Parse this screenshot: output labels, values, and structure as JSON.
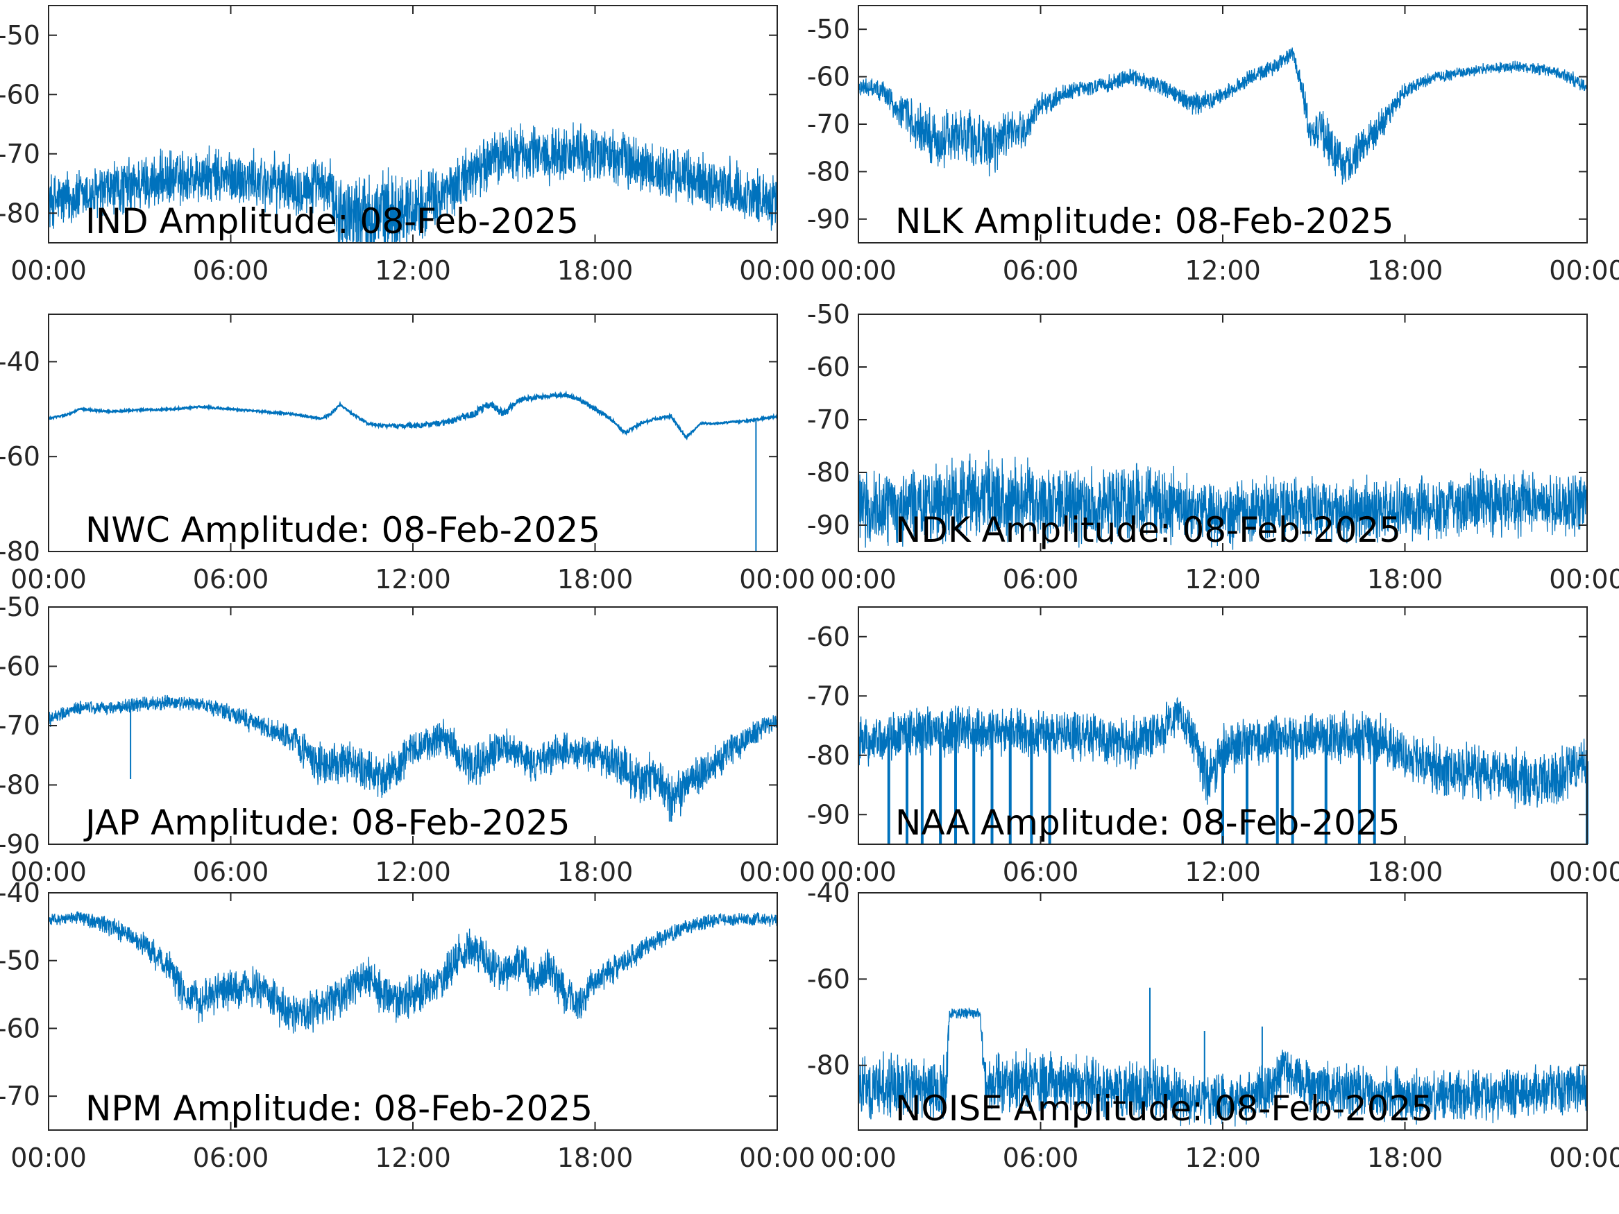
{
  "colors": {
    "series": "#0072BD",
    "axes": "#262626",
    "text": "#000000"
  },
  "x_tick_labels": [
    "00:00",
    "06:00",
    "12:00",
    "18:00",
    "00:00"
  ],
  "chart_data": [
    {
      "type": "line",
      "title": "IND Amplitude: 08-Feb-2025",
      "xlim": [
        0,
        24
      ],
      "ylim": [
        -85,
        -45
      ],
      "yticks": [
        -80,
        -70,
        -60,
        -50
      ],
      "ytick_labels": [
        "-80",
        "-70",
        "-60",
        "-50"
      ],
      "style": "noisy",
      "series": [
        {
          "x": [
            0,
            1.5,
            3,
            4.5,
            6,
            7.5,
            9.3,
            9.6,
            11,
            12,
            13,
            14,
            15,
            16,
            17,
            18,
            19,
            20,
            21,
            22,
            23,
            24
          ],
          "y": [
            -78,
            -77,
            -75,
            -74,
            -74,
            -75,
            -76,
            -80,
            -80,
            -79,
            -77,
            -73,
            -70,
            -70,
            -70,
            -70,
            -71,
            -73,
            -74,
            -75,
            -77,
            -78
          ],
          "band": [
            4,
            4,
            4,
            4,
            4,
            4,
            4,
            6,
            6,
            5,
            4,
            4,
            4,
            4,
            4,
            4,
            4,
            4,
            4,
            4,
            4,
            4
          ]
        }
      ]
    },
    {
      "type": "line",
      "title": "NLK Amplitude: 08-Feb-2025",
      "xlim": [
        0,
        24
      ],
      "ylim": [
        -95,
        -45
      ],
      "yticks": [
        -90,
        -80,
        -70,
        -60,
        -50
      ],
      "ytick_labels": [
        "-90",
        "-80",
        "-70",
        "-60",
        "-50"
      ],
      "style": "noisy",
      "series": [
        {
          "x": [
            0,
            0.8,
            1.5,
            2.5,
            3.5,
            4.5,
            5,
            5.5,
            6,
            7,
            8,
            9,
            10,
            10.5,
            11,
            12,
            13,
            14,
            14.3,
            14.6,
            14.9,
            15.2,
            16,
            17,
            18,
            19,
            20,
            21,
            22,
            23,
            24
          ],
          "y": [
            -62,
            -63,
            -68,
            -74,
            -72,
            -75,
            -72,
            -71,
            -66,
            -63,
            -62,
            -60,
            -62,
            -64,
            -66,
            -64,
            -60,
            -57,
            -55,
            -62,
            -72,
            -71,
            -79,
            -72,
            -63,
            -60,
            -59,
            -58,
            -58,
            -59,
            -62
          ],
          "band": [
            1.5,
            2,
            4,
            5,
            5,
            5,
            4,
            3,
            2,
            1.5,
            1.5,
            1.5,
            1.5,
            2,
            2,
            1.5,
            1.5,
            1.5,
            1.5,
            2,
            3,
            4,
            4,
            3,
            1.5,
            1,
            1,
            1,
            1,
            1,
            1.5
          ]
        }
      ]
    },
    {
      "type": "line",
      "title": "NWC Amplitude: 08-Feb-2025",
      "xlim": [
        0,
        24
      ],
      "ylim": [
        -80,
        -30
      ],
      "yticks": [
        -80,
        -60,
        -40
      ],
      "ytick_labels": [
        "-80",
        "-60",
        "-40"
      ],
      "style": "smooth",
      "series": [
        {
          "x": [
            0,
            0.7,
            1,
            2,
            3,
            4,
            5,
            6,
            7,
            8,
            9,
            9.3,
            9.6,
            10,
            10.5,
            11,
            12,
            13,
            14,
            14.5,
            15,
            15.5,
            16,
            17,
            17.5,
            18,
            18.5,
            19,
            19.5,
            20,
            20.5,
            21,
            21.5,
            22,
            23,
            24
          ],
          "y": [
            -52,
            -51,
            -50,
            -50.5,
            -50.2,
            -50,
            -49.5,
            -50,
            -50.5,
            -51,
            -52,
            -51,
            -49,
            -51,
            -53,
            -53.5,
            -53.5,
            -53,
            -51,
            -49,
            -51,
            -48,
            -47.5,
            -47,
            -48,
            -50,
            -52,
            -55,
            -53,
            -52,
            -51.5,
            -56,
            -53,
            -53,
            -52.5,
            -51.5
          ],
          "band": [
            0.4,
            0.4,
            0.4,
            0.4,
            0.4,
            0.4,
            0.4,
            0.4,
            0.4,
            0.4,
            0.4,
            0.4,
            0.4,
            0.5,
            0.6,
            0.6,
            1,
            1.2,
            1.5,
            1.5,
            1.5,
            1.2,
            1,
            0.8,
            0.8,
            0.8,
            0.8,
            0.8,
            0.6,
            0.5,
            0.5,
            0.5,
            0.4,
            0.4,
            0.4,
            0.4
          ],
          "spikes": [
            {
              "x": 23.3,
              "y": -80
            }
          ]
        }
      ]
    },
    {
      "type": "line",
      "title": "NDK Amplitude: 08-Feb-2025",
      "xlim": [
        0,
        24
      ],
      "ylim": [
        -95,
        -50
      ],
      "yticks": [
        -90,
        -80,
        -70,
        -60,
        -50
      ],
      "ytick_labels": [
        "-90",
        "-80",
        "-70",
        "-60",
        "-50"
      ],
      "style": "noisy",
      "series": [
        {
          "x": [
            0,
            2,
            4,
            6,
            8,
            10,
            11,
            12,
            14,
            16,
            18,
            20,
            22,
            24
          ],
          "y": [
            -87,
            -86,
            -85,
            -86,
            -86,
            -86,
            -87,
            -88,
            -87,
            -87,
            -87,
            -86,
            -86,
            -86
          ],
          "band": [
            6,
            6,
            7,
            6,
            6,
            6,
            5,
            5,
            5,
            5,
            5,
            5,
            5,
            5
          ]
        }
      ]
    },
    {
      "type": "line",
      "title": "JAP Amplitude: 08-Feb-2025",
      "xlim": [
        0,
        24
      ],
      "ylim": [
        -90,
        -50
      ],
      "yticks": [
        -90,
        -80,
        -70,
        -60,
        -50
      ],
      "ytick_labels": [
        "-90",
        "-80",
        "-70",
        "-60",
        "-50"
      ],
      "style": "noisy",
      "series": [
        {
          "x": [
            0,
            1,
            2,
            3,
            4,
            5,
            6,
            7,
            8,
            9,
            10,
            10.5,
            11,
            11.5,
            12,
            13,
            13,
            14,
            15,
            16,
            17,
            18,
            19,
            19.5,
            20,
            20.5,
            21,
            22,
            23,
            24
          ],
          "y": [
            -69,
            -67,
            -67,
            -66.5,
            -66,
            -66.5,
            -68,
            -70,
            -72,
            -77,
            -76,
            -78,
            -79,
            -77,
            -74,
            -72,
            -72,
            -77,
            -73,
            -77,
            -74,
            -75,
            -77,
            -80,
            -78,
            -83,
            -80,
            -76,
            -72,
            -69
          ],
          "band": [
            1,
            1,
            1,
            1,
            1,
            1,
            1.5,
            1.5,
            2,
            3,
            3,
            3,
            3,
            3,
            2.5,
            2.5,
            2.5,
            3,
            2.5,
            2.5,
            2.5,
            2.5,
            3,
            3.5,
            3,
            3.5,
            3,
            2.5,
            2,
            1.5
          ],
          "spikes": [
            {
              "x": 2.7,
              "y": -79
            }
          ]
        }
      ]
    },
    {
      "type": "line",
      "title": "NAA Amplitude: 08-Feb-2025",
      "xlim": [
        0,
        24
      ],
      "ylim": [
        -95,
        -55
      ],
      "yticks": [
        -90,
        -80,
        -70,
        -60
      ],
      "ytick_labels": [
        "-90",
        "-80",
        "-70",
        "-60"
      ],
      "style": "noisy",
      "series": [
        {
          "x": [
            0,
            2,
            4,
            6,
            8,
            9,
            10,
            10.5,
            11,
            11.5,
            12,
            13,
            14,
            15,
            16,
            17,
            18,
            19,
            20,
            21,
            22,
            23,
            24
          ],
          "y": [
            -78,
            -76,
            -76,
            -76,
            -77,
            -78,
            -76,
            -73,
            -77,
            -84,
            -79,
            -78,
            -77,
            -77,
            -77,
            -77,
            -80,
            -82,
            -83,
            -83,
            -84,
            -84,
            -81
          ],
          "band": [
            3.5,
            3.5,
            3.5,
            3.5,
            3.5,
            3.5,
            3.5,
            2.5,
            3.5,
            4,
            3.5,
            3.5,
            3.5,
            3.5,
            3.5,
            3.5,
            4,
            4,
            4,
            4,
            4,
            4,
            4
          ],
          "dropouts": [
            1,
            1.6,
            2.1,
            2.7,
            3.2,
            3.8,
            4.4,
            5.0,
            5.7,
            6.3,
            12.0,
            12.8,
            13.8,
            14.3,
            15.4,
            16.5,
            17.0,
            24.0
          ]
        }
      ]
    },
    {
      "type": "line",
      "title": "NPM Amplitude: 08-Feb-2025",
      "xlim": [
        0,
        24
      ],
      "ylim": [
        -75,
        -40
      ],
      "yticks": [
        -70,
        -60,
        -50,
        -40
      ],
      "ytick_labels": [
        "-70",
        "-60",
        "-50",
        "-40"
      ],
      "style": "noisy",
      "series": [
        {
          "x": [
            0,
            1,
            2,
            3,
            4,
            4.5,
            5,
            6,
            7,
            8,
            9,
            10,
            10.5,
            11,
            11.5,
            12,
            13,
            13.5,
            14,
            15,
            15.5,
            16,
            16.5,
            17,
            17.5,
            18,
            19,
            20,
            21,
            22,
            23,
            24
          ],
          "y": [
            -44,
            -43.5,
            -45,
            -47,
            -51,
            -55,
            -56,
            -54,
            -54,
            -58,
            -57,
            -54,
            -52,
            -55,
            -56,
            -55,
            -53,
            -49,
            -48,
            -52,
            -50,
            -53,
            -51,
            -55,
            -56,
            -53,
            -50,
            -47,
            -45,
            -44,
            -44,
            -44
          ],
          "band": [
            0.8,
            0.8,
            1.2,
            1.5,
            2,
            2.5,
            2.5,
            2.5,
            2.5,
            2.5,
            2.5,
            2.5,
            2.5,
            2.5,
            2.5,
            2.5,
            2.5,
            2.5,
            2.5,
            2.5,
            2.5,
            2.5,
            2.5,
            2.5,
            2.5,
            2,
            1.5,
            1.2,
            1,
            0.8,
            0.8,
            0.8
          ]
        }
      ]
    },
    {
      "type": "line",
      "title": "NOISE Amplitude: 08-Feb-2025",
      "xlim": [
        0,
        24
      ],
      "ylim": [
        -95,
        -40
      ],
      "yticks": [
        -80,
        -60,
        -40
      ],
      "ytick_labels": [
        "-80",
        "-60",
        "-40"
      ],
      "style": "noisy",
      "series": [
        {
          "x": [
            0,
            2,
            2.9,
            3.0,
            4.0,
            4.2,
            6,
            8,
            9.5,
            10,
            11,
            12,
            13.5,
            14,
            15,
            16,
            18,
            20,
            22,
            24
          ],
          "y": [
            -85,
            -85,
            -85,
            -68,
            -68,
            -85,
            -84,
            -85,
            -86,
            -86,
            -88,
            -88,
            -86,
            -80,
            -85,
            -86,
            -87,
            -87,
            -86,
            -85
          ],
          "band": [
            6,
            6,
            6,
            1,
            1,
            6,
            6,
            6,
            6,
            6,
            5,
            5,
            5,
            5,
            5,
            5,
            5,
            5,
            5,
            5
          ],
          "spikes": [
            {
              "x": 9.6,
              "y": -62
            },
            {
              "x": 11.4,
              "y": -72
            },
            {
              "x": 13.3,
              "y": -71
            }
          ]
        }
      ]
    }
  ]
}
